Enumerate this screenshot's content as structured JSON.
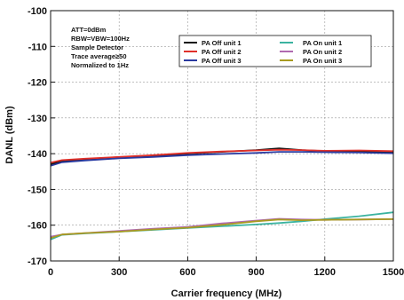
{
  "chart_data": {
    "type": "line",
    "xlabel": "Carrier frequency (MHz)",
    "ylabel": "DANL (dBm)",
    "xlim": [
      0,
      1500
    ],
    "ylim": [
      -170,
      -100
    ],
    "x_ticks": [
      "0",
      "300",
      "600",
      "900",
      "1200",
      "1500"
    ],
    "y_ticks": [
      "-100",
      "-110",
      "-120",
      "-130",
      "-140",
      "-150",
      "-160",
      "-170"
    ],
    "grid": true,
    "annotation_lines": [
      "ATT=0dBm",
      "RBW=VBW=100Hz",
      "Sample Detector",
      "Trace average≥50",
      "Normalized to 1Hz"
    ],
    "legend_position": "top-right",
    "series": [
      {
        "name": "PA Off unit 1",
        "color": "#111111",
        "x": [
          0,
          50,
          150,
          300,
          450,
          600,
          750,
          900,
          1000,
          1100,
          1200,
          1350,
          1500
        ],
        "y": [
          -143,
          -142,
          -141.6,
          -141,
          -140.6,
          -140,
          -139.5,
          -139,
          -138.5,
          -139,
          -139.3,
          -139.3,
          -139.6
        ]
      },
      {
        "name": "PA Off unit 2",
        "color": "#e0302a",
        "x": [
          0,
          50,
          150,
          300,
          450,
          600,
          750,
          900,
          1000,
          1100,
          1200,
          1350,
          1500
        ],
        "y": [
          -142.5,
          -141.8,
          -141.4,
          -140.9,
          -140.4,
          -139.8,
          -139.4,
          -139.1,
          -138.9,
          -139,
          -139.2,
          -139.1,
          -139.3
        ]
      },
      {
        "name": "PA Off unit 3",
        "color": "#2a3aa0",
        "x": [
          0,
          50,
          150,
          300,
          450,
          600,
          750,
          900,
          1000,
          1100,
          1200,
          1350,
          1500
        ],
        "y": [
          -143.4,
          -142.4,
          -141.9,
          -141.3,
          -140.9,
          -140.4,
          -140.1,
          -139.8,
          -139.5,
          -139.5,
          -139.6,
          -139.7,
          -139.9
        ]
      },
      {
        "name": "PA On unit 1",
        "color": "#3bb3a0",
        "x": [
          0,
          50,
          150,
          300,
          450,
          600,
          750,
          900,
          1000,
          1100,
          1200,
          1350,
          1500
        ],
        "y": [
          -164,
          -162.7,
          -162.3,
          -161.8,
          -161.3,
          -160.8,
          -160.3,
          -159.8,
          -159.4,
          -158.9,
          -158.3,
          -157.5,
          -156.4
        ]
      },
      {
        "name": "PA On unit 2",
        "color": "#b06ab0",
        "x": [
          0,
          50,
          150,
          300,
          450,
          600,
          750,
          900,
          1000,
          1100,
          1200,
          1350,
          1500
        ],
        "y": [
          -163.2,
          -162.6,
          -162.2,
          -161.6,
          -161,
          -160.5,
          -159.5,
          -158.7,
          -158.2,
          -158.4,
          -158.5,
          -158.4,
          -158.3
        ]
      },
      {
        "name": "PA On unit 3",
        "color": "#a89a20",
        "x": [
          0,
          50,
          150,
          300,
          450,
          600,
          750,
          900,
          1000,
          1100,
          1200,
          1350,
          1500
        ],
        "y": [
          -163.6,
          -162.6,
          -162.2,
          -161.8,
          -161.2,
          -160.7,
          -159.9,
          -158.9,
          -158.4,
          -158.6,
          -158.5,
          -158.4,
          -158.3
        ]
      }
    ]
  }
}
